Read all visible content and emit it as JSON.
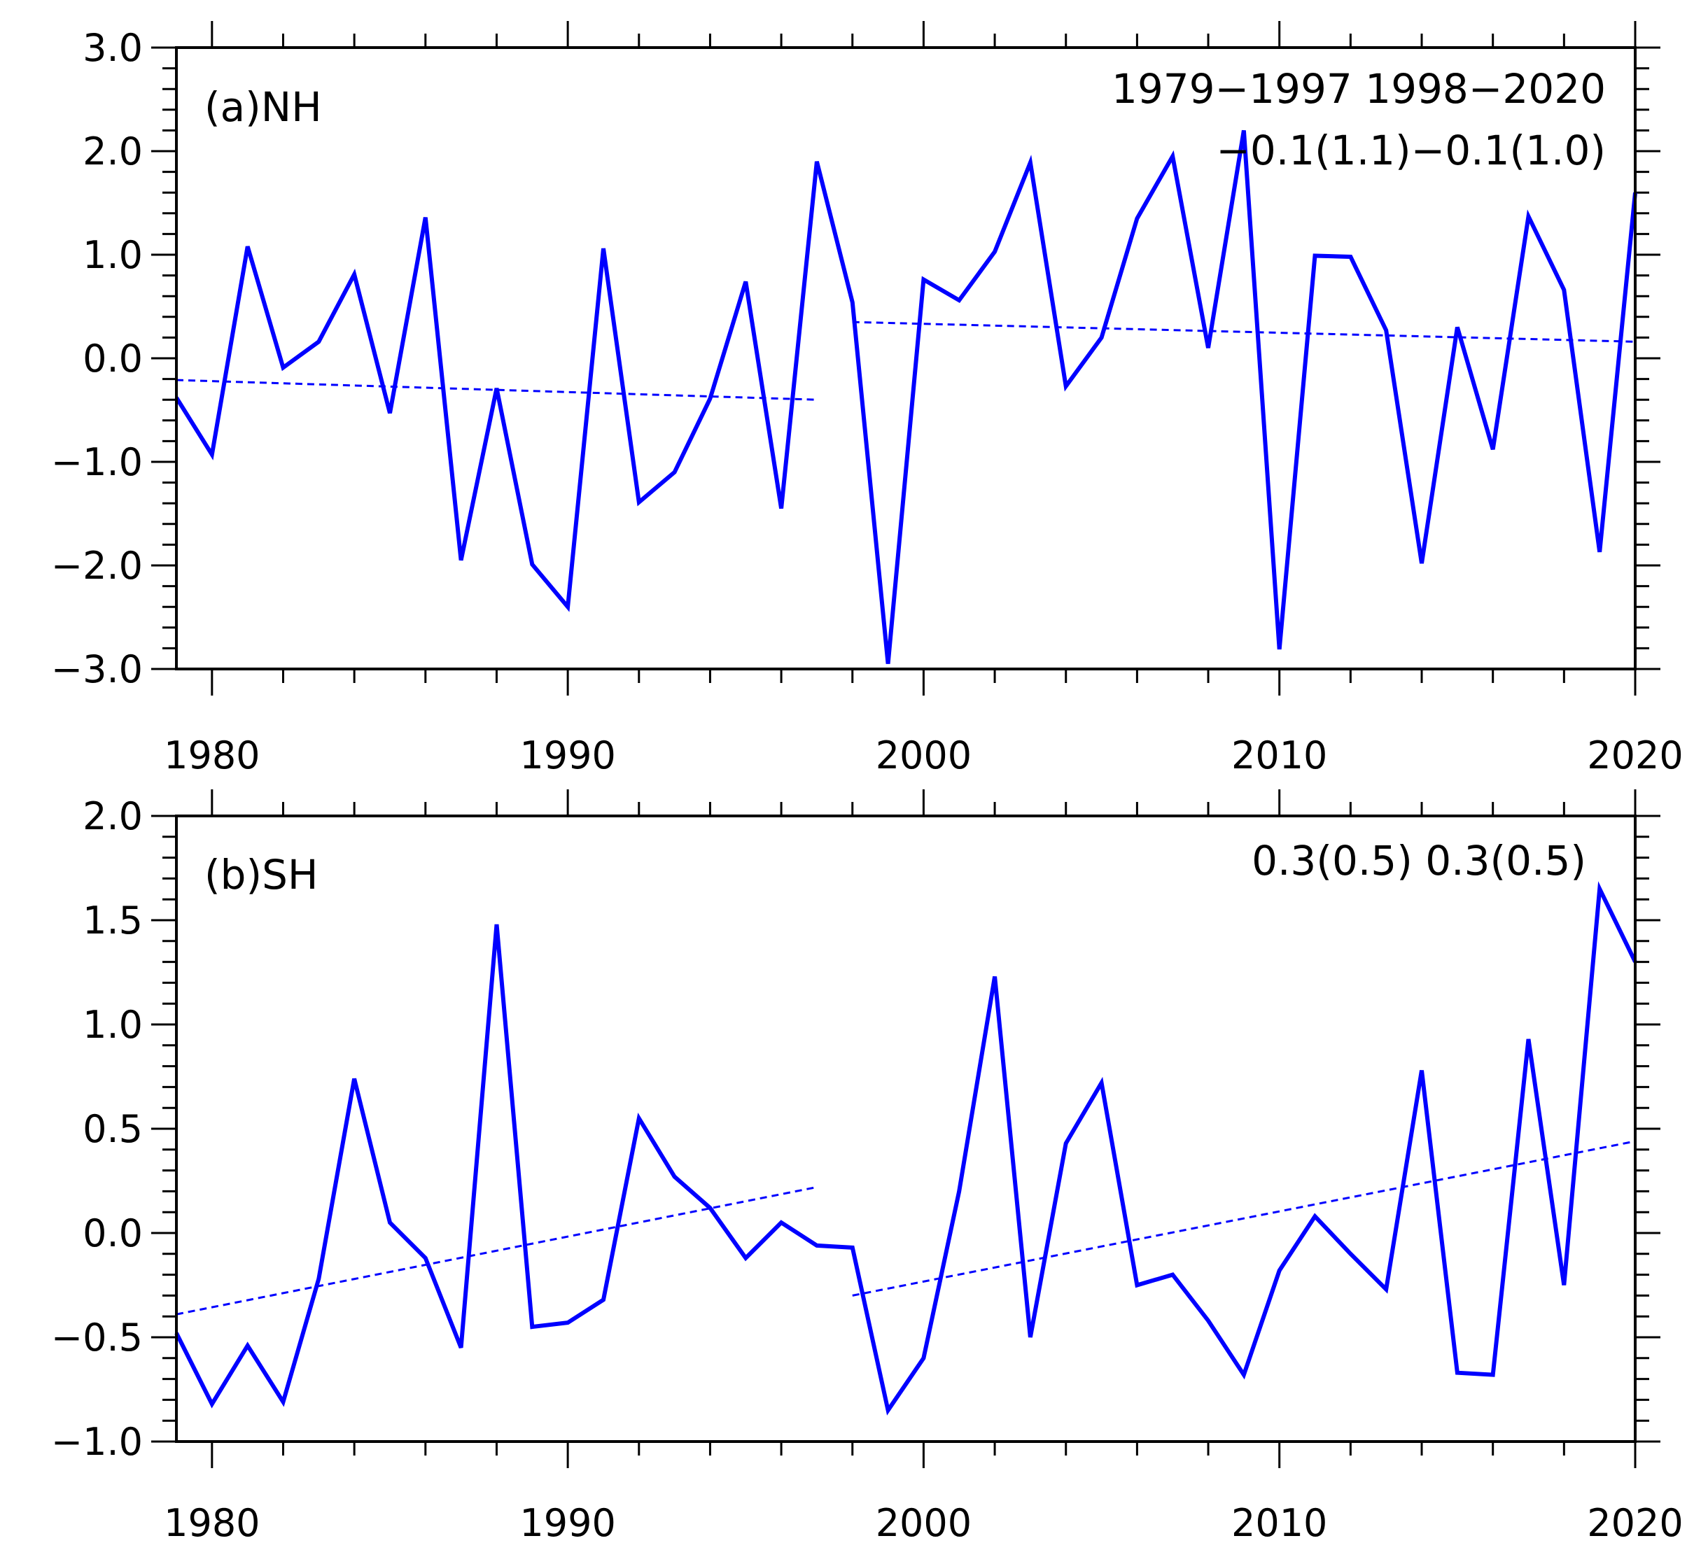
{
  "colors": {
    "series": "#0000ff",
    "axis": "#000000",
    "background": "#ffffff"
  },
  "chart_data": [
    {
      "type": "line",
      "panel_label": "(a)NH",
      "x": [
        1979,
        1980,
        1981,
        1982,
        1983,
        1984,
        1985,
        1986,
        1987,
        1988,
        1989,
        1990,
        1991,
        1992,
        1993,
        1994,
        1995,
        1996,
        1997,
        1998,
        1999,
        2000,
        2001,
        2002,
        2003,
        2004,
        2005,
        2006,
        2007,
        2008,
        2009,
        2010,
        2011,
        2012,
        2013,
        2014,
        2015,
        2016,
        2017,
        2018,
        2019,
        2020
      ],
      "values": [
        -0.38,
        -0.93,
        1.08,
        -0.09,
        0.16,
        0.81,
        -0.53,
        1.36,
        -1.95,
        -0.29,
        -1.99,
        -2.4,
        1.06,
        -1.39,
        -1.1,
        -0.39,
        0.74,
        -1.45,
        1.9,
        0.54,
        -2.95,
        0.76,
        0.56,
        1.03,
        1.89,
        -0.27,
        0.2,
        1.35,
        1.95,
        0.1,
        2.2,
        -2.81,
        0.99,
        0.98,
        0.27,
        -1.98,
        0.3,
        -0.88,
        1.37,
        0.66,
        -1.87,
        1.6
      ],
      "xlim": [
        1979,
        2020
      ],
      "ylim": [
        -3.0,
        3.0
      ],
      "yticks": [
        3.0,
        2.0,
        1.0,
        0.0,
        -1.0,
        -2.0,
        -3.0
      ],
      "ytick_labels": [
        "3.0",
        "2.0",
        "1.0",
        "0.0",
        "−1.0",
        "−2.0",
        "−3.0"
      ],
      "xticks": [
        1980,
        1990,
        2000,
        2010,
        2020
      ],
      "xtick_labels": [
        "1980",
        "1990",
        "2000",
        "2010",
        "2020"
      ],
      "trends": [
        {
          "x": [
            1979,
            1997
          ],
          "y": [
            -0.21,
            -0.4
          ]
        },
        {
          "x": [
            1998,
            2020
          ],
          "y": [
            0.35,
            0.16
          ]
        }
      ],
      "annotations": {
        "line1": "1979−1997  1998−2020",
        "line2": "−0.1(1.1)−0.1(1.0)"
      }
    },
    {
      "type": "line",
      "panel_label": "(b)SH",
      "x": [
        1979,
        1980,
        1981,
        1982,
        1983,
        1984,
        1985,
        1986,
        1987,
        1988,
        1989,
        1990,
        1991,
        1992,
        1993,
        1994,
        1995,
        1996,
        1997,
        1998,
        1999,
        2000,
        2001,
        2002,
        2003,
        2004,
        2005,
        2006,
        2007,
        2008,
        2009,
        2010,
        2011,
        2012,
        2013,
        2014,
        2015,
        2016,
        2017,
        2018,
        2019,
        2020
      ],
      "values": [
        -0.48,
        -0.82,
        -0.54,
        -0.81,
        -0.22,
        0.74,
        0.05,
        -0.12,
        -0.55,
        1.48,
        -0.45,
        -0.43,
        -0.32,
        0.55,
        0.27,
        0.12,
        -0.12,
        0.05,
        -0.06,
        -0.07,
        -0.85,
        -0.6,
        0.2,
        1.23,
        -0.5,
        0.43,
        0.72,
        -0.25,
        -0.2,
        -0.42,
        -0.68,
        -0.18,
        0.08,
        -0.1,
        -0.27,
        0.78,
        -0.67,
        -0.68,
        0.93,
        -0.25,
        1.65,
        1.3
      ],
      "xlim": [
        1979,
        2020
      ],
      "ylim": [
        -1.0,
        2.0
      ],
      "yticks": [
        2.0,
        1.5,
        1.0,
        0.5,
        0.0,
        -0.5,
        -1.0
      ],
      "ytick_labels": [
        "2.0",
        "1.5",
        "1.0",
        "0.5",
        "0.0",
        "−0.5",
        "−1.0"
      ],
      "xticks": [
        1980,
        1990,
        2000,
        2010,
        2020
      ],
      "xtick_labels": [
        "1980",
        "1990",
        "2000",
        "2010",
        "2020"
      ],
      "trends": [
        {
          "x": [
            1979,
            1997
          ],
          "y": [
            -0.39,
            0.22
          ]
        },
        {
          "x": [
            1998,
            2020
          ],
          "y": [
            -0.3,
            0.44
          ]
        }
      ],
      "annotations": {
        "line1": "0.3(0.5)  0.3(0.5)"
      }
    }
  ]
}
